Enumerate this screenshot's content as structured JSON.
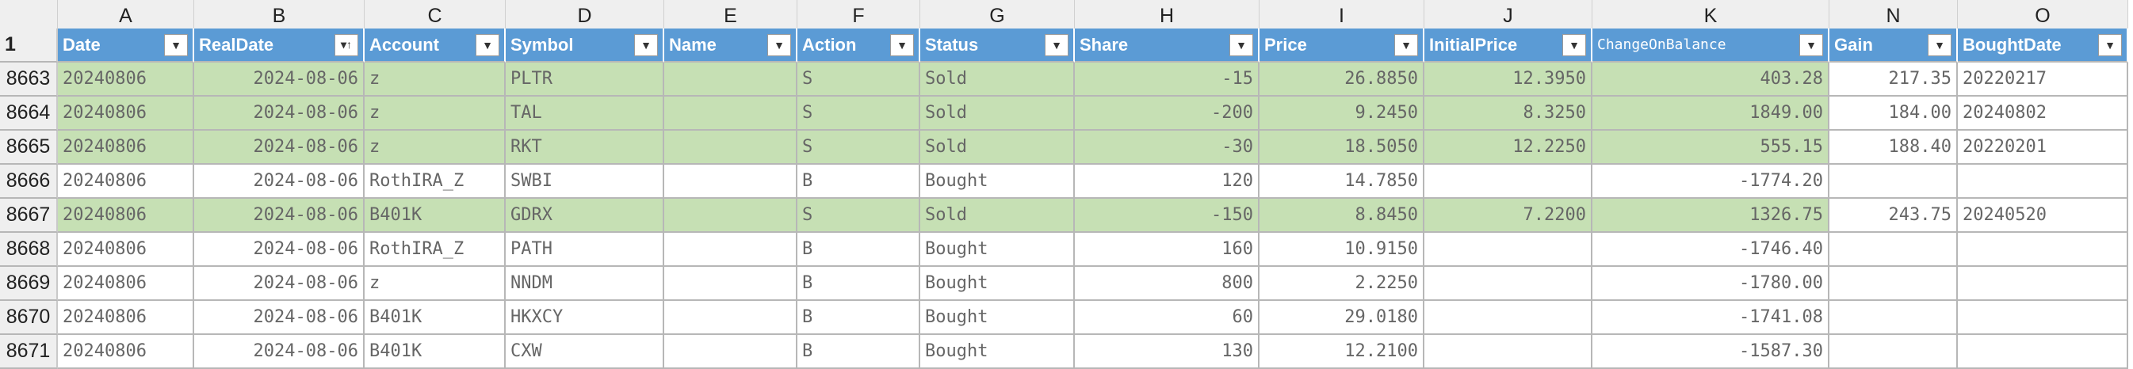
{
  "column_letters": [
    "",
    "A",
    "B",
    "C",
    "D",
    "E",
    "F",
    "G",
    "H",
    "I",
    "J",
    "K",
    "N",
    "O"
  ],
  "header_row_number": "1",
  "headers": [
    "Date",
    "RealDate",
    "Account",
    "Symbol",
    "Name",
    "Action",
    "Status",
    "Share",
    "Price",
    "InitialPrice",
    "ChangeOnBalance",
    "Gain",
    "BoughtDate"
  ],
  "rows": [
    {
      "num": "8663",
      "green": true,
      "cells": [
        "20240806",
        "2024-08-06",
        "z",
        "PLTR",
        "",
        "S",
        "Sold",
        "-15",
        "26.8850",
        "12.3950",
        "403.28",
        "217.35",
        "20220217"
      ]
    },
    {
      "num": "8664",
      "green": true,
      "cells": [
        "20240806",
        "2024-08-06",
        "z",
        "TAL",
        "",
        "S",
        "Sold",
        "-200",
        "9.2450",
        "8.3250",
        "1849.00",
        "184.00",
        "20240802"
      ]
    },
    {
      "num": "8665",
      "green": true,
      "cells": [
        "20240806",
        "2024-08-06",
        "z",
        "RKT",
        "",
        "S",
        "Sold",
        "-30",
        "18.5050",
        "12.2250",
        "555.15",
        "188.40",
        "20220201"
      ]
    },
    {
      "num": "8666",
      "green": false,
      "cells": [
        "20240806",
        "2024-08-06",
        "RothIRA_Z",
        "SWBI",
        "",
        "B",
        "Bought",
        "120",
        "14.7850",
        "",
        "-1774.20",
        "",
        ""
      ]
    },
    {
      "num": "8667",
      "green": true,
      "cells": [
        "20240806",
        "2024-08-06",
        "B401K",
        "GDRX",
        "",
        "S",
        "Sold",
        "-150",
        "8.8450",
        "7.2200",
        "1326.75",
        "243.75",
        "20240520"
      ]
    },
    {
      "num": "8668",
      "green": false,
      "cells": [
        "20240806",
        "2024-08-06",
        "RothIRA_Z",
        "PATH",
        "",
        "B",
        "Bought",
        "160",
        "10.9150",
        "",
        "-1746.40",
        "",
        ""
      ]
    },
    {
      "num": "8669",
      "green": false,
      "cells": [
        "20240806",
        "2024-08-06",
        "z",
        "NNDM",
        "",
        "B",
        "Bought",
        "800",
        "2.2250",
        "",
        "-1780.00",
        "",
        ""
      ]
    },
    {
      "num": "8670",
      "green": false,
      "cells": [
        "20240806",
        "2024-08-06",
        "B401K",
        "HKXCY",
        "",
        "B",
        "Bought",
        "60",
        "29.0180",
        "",
        "-1741.08",
        "",
        ""
      ]
    },
    {
      "num": "8671",
      "green": false,
      "cells": [
        "20240806",
        "2024-08-06",
        "B401K",
        "CXW",
        "",
        "B",
        "Bought",
        "130",
        "12.2100",
        "",
        "-1587.30",
        "",
        ""
      ]
    }
  ],
  "filter_icon": "dropdown-arrow-icon",
  "sort_icon": "sort-ascending-filter-icon",
  "colors": {
    "header_blue": "#5b9bd5",
    "sold_green": "#c6e0b4",
    "grid": "#b7b7b7",
    "row_col_header": "#efefef"
  }
}
